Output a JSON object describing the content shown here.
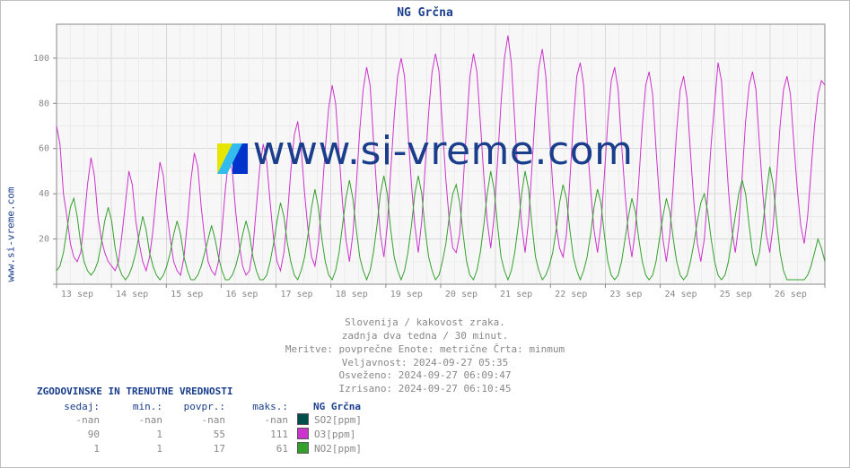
{
  "title": "NG Grčna",
  "y_axis_label_outer": "www.si-vreme.com",
  "watermark": {
    "text": "www.si-vreme.com",
    "text_color": "#1a3e8c",
    "logo_colors": [
      "#e6e600",
      "#0033cc",
      "#33bbee"
    ]
  },
  "chart": {
    "type": "line",
    "background_color": "#ffffff",
    "plot_background_color": "#f7f7f7",
    "grid_major_color": "#d9d9d9",
    "grid_minor_color": "#ececec",
    "axis_color": "#888888",
    "ylim": [
      0,
      115
    ],
    "y_ticks": [
      0,
      20,
      40,
      60,
      80,
      100
    ],
    "x_categories": [
      "13 sep",
      "14 sep",
      "15 sep",
      "16 sep",
      "17 sep",
      "18 sep",
      "19 sep",
      "20 sep",
      "21 sep",
      "22 sep",
      "23 sep",
      "24 sep",
      "25 sep",
      "26 sep"
    ],
    "minor_x_per_major": 4,
    "tick_label_fontsize": 10,
    "line_width": 1.0,
    "series": [
      {
        "name": "O3[ppm]",
        "color": "#cc33cc",
        "values": [
          70,
          62,
          40,
          30,
          18,
          12,
          10,
          14,
          28,
          44,
          56,
          48,
          30,
          20,
          14,
          10,
          8,
          6,
          10,
          22,
          36,
          50,
          44,
          28,
          18,
          10,
          6,
          12,
          24,
          40,
          54,
          48,
          32,
          20,
          10,
          6,
          4,
          12,
          28,
          46,
          58,
          52,
          34,
          20,
          10,
          6,
          4,
          10,
          24,
          42,
          56,
          50,
          32,
          18,
          8,
          4,
          6,
          16,
          34,
          52,
          62,
          54,
          36,
          20,
          10,
          6,
          14,
          30,
          50,
          66,
          72,
          60,
          40,
          24,
          12,
          8,
          18,
          38,
          60,
          78,
          88,
          80,
          58,
          36,
          20,
          10,
          22,
          44,
          68,
          86,
          96,
          88,
          64,
          40,
          22,
          12,
          26,
          50,
          74,
          92,
          100,
          92,
          68,
          44,
          26,
          14,
          28,
          52,
          76,
          94,
          102,
          94,
          70,
          46,
          28,
          16,
          14,
          22,
          44,
          70,
          92,
          102,
          94,
          72,
          48,
          28,
          16,
          30,
          54,
          80,
          100,
          110,
          98,
          72,
          46,
          26,
          14,
          28,
          52,
          78,
          96,
          104,
          92,
          68,
          44,
          26,
          16,
          12,
          22,
          46,
          72,
          92,
          98,
          88,
          64,
          42,
          24,
          14,
          26,
          48,
          72,
          90,
          96,
          86,
          62,
          40,
          22,
          12,
          24,
          46,
          70,
          88,
          94,
          84,
          60,
          38,
          20,
          10,
          22,
          44,
          68,
          86,
          92,
          82,
          58,
          36,
          18,
          10,
          20,
          40,
          62,
          80,
          98,
          90,
          66,
          42,
          24,
          14,
          26,
          48,
          72,
          88,
          94,
          86,
          62,
          40,
          22,
          14,
          26,
          48,
          70,
          86,
          92,
          84,
          62,
          42,
          26,
          18,
          30,
          50,
          70,
          84,
          90,
          88
        ]
      },
      {
        "name": "NO2[ppm]",
        "color": "#33a02c",
        "values": [
          6,
          8,
          14,
          24,
          34,
          38,
          30,
          18,
          10,
          6,
          4,
          6,
          10,
          18,
          28,
          34,
          28,
          16,
          8,
          4,
          2,
          4,
          8,
          14,
          22,
          30,
          24,
          14,
          8,
          4,
          2,
          4,
          8,
          14,
          22,
          28,
          22,
          12,
          6,
          2,
          2,
          4,
          8,
          14,
          20,
          26,
          20,
          12,
          6,
          2,
          2,
          4,
          8,
          14,
          22,
          28,
          22,
          12,
          6,
          2,
          2,
          4,
          10,
          18,
          28,
          36,
          30,
          18,
          10,
          4,
          2,
          6,
          12,
          22,
          34,
          42,
          34,
          20,
          10,
          4,
          2,
          6,
          14,
          26,
          38,
          46,
          38,
          24,
          12,
          6,
          2,
          6,
          14,
          26,
          40,
          48,
          40,
          24,
          12,
          6,
          2,
          6,
          14,
          26,
          40,
          48,
          40,
          24,
          12,
          6,
          2,
          4,
          10,
          18,
          30,
          40,
          44,
          36,
          22,
          10,
          4,
          2,
          6,
          14,
          26,
          40,
          50,
          42,
          26,
          12,
          6,
          2,
          6,
          14,
          26,
          40,
          50,
          42,
          26,
          12,
          6,
          2,
          4,
          8,
          14,
          24,
          36,
          44,
          38,
          24,
          12,
          6,
          2,
          6,
          12,
          22,
          34,
          42,
          36,
          22,
          10,
          4,
          2,
          4,
          10,
          20,
          30,
          38,
          32,
          20,
          10,
          4,
          2,
          4,
          10,
          20,
          30,
          38,
          32,
          20,
          10,
          4,
          2,
          4,
          10,
          18,
          28,
          36,
          40,
          32,
          20,
          10,
          4,
          2,
          4,
          10,
          20,
          30,
          40,
          46,
          40,
          26,
          14,
          8,
          14,
          26,
          40,
          52,
          44,
          28,
          14,
          6,
          2,
          2,
          2,
          2,
          2,
          2,
          4,
          8,
          14,
          20,
          16,
          10
        ]
      }
    ]
  },
  "caption": {
    "line1": "Slovenija / kakovost zraka.",
    "line2": "zadnja dva tedna / 30 minut.",
    "line3": "Meritve: povprečne  Enote: metrične  Črta: minmum",
    "line4": "Veljavnost: 2024-09-27 05:35",
    "line5": "Osveženo: 2024-09-27 06:09:47",
    "line6": "Izrisano: 2024-09-27 06:10:45"
  },
  "stats": {
    "title": "ZGODOVINSKE IN TRENUTNE VREDNOSTI",
    "columns": [
      "sedaj:",
      "min.:",
      "povpr.:",
      "maks.:"
    ],
    "station_label": "NG Grčna",
    "rows": [
      {
        "values": [
          "-nan",
          "-nan",
          "-nan",
          "-nan"
        ],
        "swatch": "#004d4d",
        "label": "SO2[ppm]"
      },
      {
        "values": [
          "90",
          "1",
          "55",
          "111"
        ],
        "swatch": "#cc33cc",
        "label": "O3[ppm]"
      },
      {
        "values": [
          "1",
          "1",
          "17",
          "61"
        ],
        "swatch": "#33a02c",
        "label": "NO2[ppm]"
      }
    ]
  }
}
